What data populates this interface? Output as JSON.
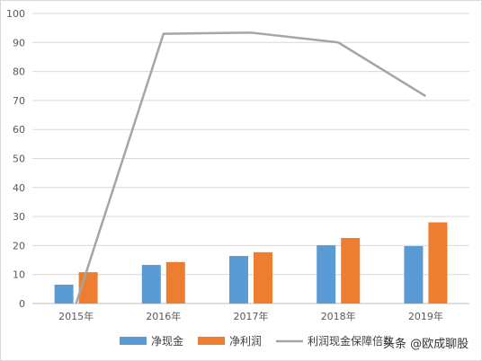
{
  "chart_data": {
    "type": "bar",
    "categories": [
      "2015年",
      "2016年",
      "2017年",
      "2018年",
      "2019年"
    ],
    "series": [
      {
        "name": "净现金",
        "type": "bar",
        "color": "#5b9bd5",
        "values": [
          6.5,
          13.3,
          16.4,
          20.1,
          19.8
        ]
      },
      {
        "name": "净利润",
        "type": "bar",
        "color": "#ed7d31",
        "values": [
          10.8,
          14.3,
          17.7,
          22.6,
          28.0
        ]
      },
      {
        "name": "利润现金保障倍数",
        "type": "line",
        "color": "#a5a5a5",
        "values": [
          0,
          93,
          93.4,
          90,
          71.5
        ]
      }
    ],
    "ylim": [
      0,
      100
    ],
    "yticks": [
      0,
      10,
      20,
      30,
      40,
      50,
      60,
      70,
      80,
      90,
      100
    ],
    "grid": true,
    "legend_position": "bottom"
  },
  "watermark": "头条 @欧成聊股"
}
